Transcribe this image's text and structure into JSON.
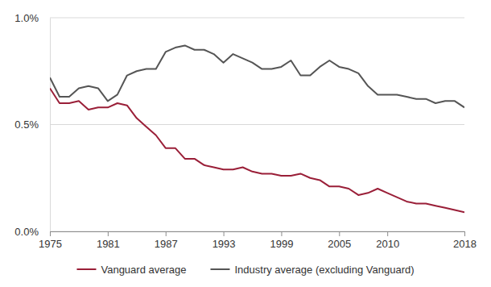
{
  "chart_data": {
    "type": "line",
    "x": [
      1975,
      1976,
      1977,
      1978,
      1979,
      1980,
      1981,
      1982,
      1983,
      1984,
      1985,
      1986,
      1987,
      1988,
      1989,
      1990,
      1991,
      1992,
      1993,
      1994,
      1995,
      1996,
      1997,
      1998,
      1999,
      2000,
      2001,
      2002,
      2003,
      2004,
      2005,
      2006,
      2007,
      2008,
      2009,
      2010,
      2011,
      2012,
      2013,
      2014,
      2015,
      2016,
      2017,
      2018
    ],
    "series": [
      {
        "name": "Vanguard average",
        "color": "#9a1f38",
        "values": [
          0.67,
          0.6,
          0.6,
          0.61,
          0.57,
          0.58,
          0.58,
          0.6,
          0.59,
          0.53,
          0.49,
          0.45,
          0.39,
          0.39,
          0.34,
          0.34,
          0.31,
          0.3,
          0.29,
          0.29,
          0.3,
          0.28,
          0.27,
          0.27,
          0.26,
          0.26,
          0.27,
          0.25,
          0.24,
          0.21,
          0.21,
          0.2,
          0.17,
          0.18,
          0.2,
          0.18,
          0.16,
          0.14,
          0.13,
          0.13,
          0.12,
          0.11,
          0.1,
          0.09
        ]
      },
      {
        "name": "Industry average (excluding Vanguard)",
        "color": "#555555",
        "values": [
          0.72,
          0.63,
          0.63,
          0.67,
          0.68,
          0.67,
          0.61,
          0.64,
          0.73,
          0.75,
          0.76,
          0.76,
          0.84,
          0.86,
          0.87,
          0.85,
          0.85,
          0.83,
          0.79,
          0.83,
          0.81,
          0.79,
          0.76,
          0.76,
          0.77,
          0.8,
          0.73,
          0.73,
          0.77,
          0.8,
          0.77,
          0.76,
          0.74,
          0.68,
          0.64,
          0.64,
          0.64,
          0.63,
          0.62,
          0.62,
          0.6,
          0.61,
          0.61,
          0.58
        ]
      }
    ],
    "xlim": [
      1975,
      2018
    ],
    "xticks": [
      1975,
      1981,
      1987,
      1993,
      1999,
      2005,
      2010,
      2018
    ],
    "ylim": [
      0,
      1
    ],
    "yticks": [
      {
        "value": 0,
        "label": "0.0%"
      },
      {
        "value": 0.5,
        "label": "0.5%"
      },
      {
        "value": 1,
        "label": "1.0%"
      }
    ],
    "grid": true,
    "legend": "bottom"
  }
}
